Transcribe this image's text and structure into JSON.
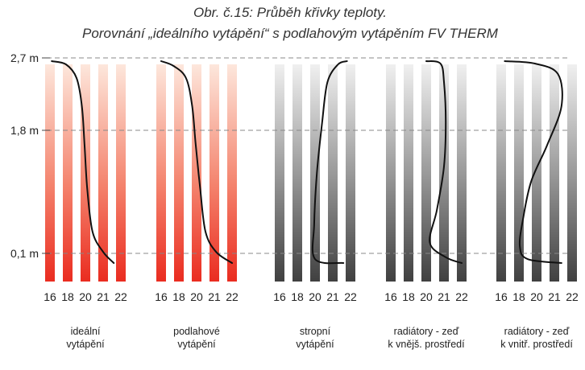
{
  "title_line1": "Obr. č.15: Průběh křivky teploty.",
  "title_line2": "Porovnání „ideálního vytápění“ s podlahovým vytápěním FV THERM",
  "heights": [
    {
      "label": "2,7 m",
      "value": 2.7
    },
    {
      "label": "1,8 m",
      "value": 1.8
    },
    {
      "label": "0,1 m",
      "value": 0.1
    }
  ],
  "temperature_ticks": [
    "16",
    "18",
    "20",
    "21",
    "22"
  ],
  "colors": {
    "warm_top": "#fde7dc",
    "warm_bottom": "#ea2c20",
    "gray_top": "#f0f0f0",
    "gray_bottom": "#404040",
    "curve": "#111111",
    "guide": "#888888"
  },
  "panels": [
    {
      "caption": [
        "ideální",
        "vytápění"
      ],
      "style": "warm",
      "curve": [
        [
          21.6,
          0.05
        ],
        [
          21.0,
          0.12
        ],
        [
          20.4,
          0.4
        ],
        [
          20.1,
          1.0
        ],
        [
          19.9,
          1.6
        ],
        [
          19.6,
          2.1
        ],
        [
          19.0,
          2.45
        ],
        [
          17.8,
          2.62
        ],
        [
          16.2,
          2.66
        ]
      ]
    },
    {
      "caption": [
        "podlahové",
        "vytápění"
      ],
      "style": "warm",
      "curve": [
        [
          22.0,
          0.05
        ],
        [
          21.1,
          0.12
        ],
        [
          20.5,
          0.4
        ],
        [
          20.2,
          1.0
        ],
        [
          19.9,
          1.6
        ],
        [
          19.5,
          2.1
        ],
        [
          18.8,
          2.45
        ],
        [
          17.4,
          2.6
        ],
        [
          16.0,
          2.66
        ]
      ]
    },
    {
      "caption": [
        "stropní",
        "vytápění"
      ],
      "style": "gray",
      "curve": [
        [
          21.6,
          0.05
        ],
        [
          20.0,
          0.07
        ],
        [
          19.9,
          0.5
        ],
        [
          20.1,
          1.2
        ],
        [
          20.4,
          1.9
        ],
        [
          20.7,
          2.4
        ],
        [
          21.3,
          2.62
        ],
        [
          21.8,
          2.66
        ]
      ]
    },
    {
      "caption": [
        "radiátory - zeď",
        "k vnějš. prostředí"
      ],
      "style": "gray",
      "curve": [
        [
          22.0,
          0.05
        ],
        [
          21.1,
          0.08
        ],
        [
          20.2,
          0.25
        ],
        [
          20.6,
          0.7
        ],
        [
          21.0,
          1.3
        ],
        [
          21.1,
          1.9
        ],
        [
          21.0,
          2.4
        ],
        [
          20.8,
          2.63
        ],
        [
          20.0,
          2.66
        ]
      ]
    },
    {
      "caption": [
        "radiátory - zeď",
        "k vnitř. prostředí"
      ],
      "style": "gray",
      "curve": [
        [
          21.4,
          0.05
        ],
        [
          19.0,
          0.07
        ],
        [
          18.1,
          0.2
        ],
        [
          18.5,
          0.6
        ],
        [
          19.4,
          1.1
        ],
        [
          20.6,
          1.6
        ],
        [
          21.4,
          2.1
        ],
        [
          21.2,
          2.5
        ],
        [
          19.8,
          2.63
        ],
        [
          16.4,
          2.66
        ]
      ]
    }
  ]
}
